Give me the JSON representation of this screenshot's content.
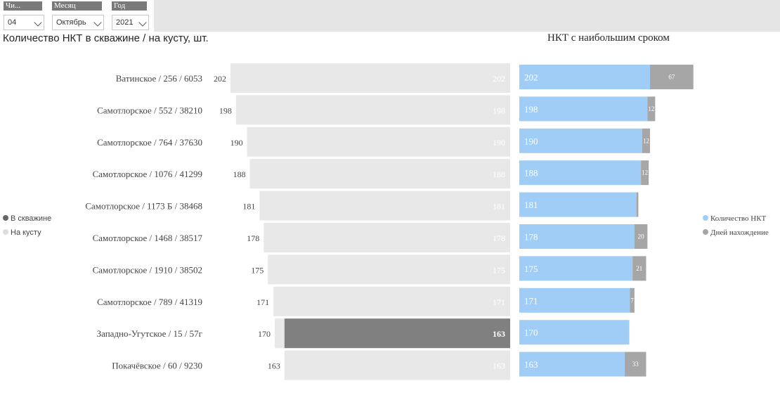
{
  "slicers": [
    {
      "title": "Чи...",
      "value": "04"
    },
    {
      "title": "Месяц",
      "value": "Октябрь"
    },
    {
      "title": "Год",
      "value": "2021"
    }
  ],
  "left_chart": {
    "title": "Количество НКТ в скважине / на кусту, шт.",
    "legend": [
      {
        "label": "В скважине",
        "color": "#666666"
      },
      {
        "label": "На кусту",
        "color": "#dddddd"
      }
    ]
  },
  "right_chart": {
    "title": "НКТ с наибольшим сроком",
    "legend": [
      {
        "label": "Количество НКТ",
        "color": "#9fcdf6"
      },
      {
        "label": "Дней нахождение",
        "color": "#a6a6a6"
      }
    ]
  },
  "chart_data": [
    {
      "type": "bar",
      "orientation": "horizontal",
      "title": "Количество НКТ в скважине / на кусту, шт.",
      "categories": [
        "Ватинское / 256 / 6053",
        "Самотлорское / 552 / 38210",
        "Самотлорское / 764 / 37630",
        "Самотлорское / 1076 / 41299",
        "Самотлорское / 1173 Б / 38468",
        "Самотлорское / 1468 / 38517",
        "Самотлорское / 1910 / 38502",
        "Самотлорское / 789 / 41319",
        "Западно-Угутское / 15 / 57г",
        "Покачёвское / 60 / 9230"
      ],
      "series": [
        {
          "name": "На кусту",
          "values": [
            202,
            198,
            190,
            188,
            181,
            178,
            175,
            171,
            170,
            163
          ],
          "color": "#e8e8e8"
        },
        {
          "name": "В скважине",
          "values": [
            0,
            0,
            0,
            0,
            0,
            0,
            0,
            0,
            163,
            0
          ],
          "color": "#808080"
        }
      ],
      "xlim": [
        0,
        202
      ],
      "legend_position": "left"
    },
    {
      "type": "bar",
      "orientation": "horizontal",
      "stacked": true,
      "title": "НКТ с наибольшим сроком",
      "categories": [
        "Ватинское / 256 / 6053",
        "Самотлорское / 552 / 38210",
        "Самотлорское / 764 / 37630",
        "Самотлорское / 1076 / 41299",
        "Самотлорское / 1173 Б / 38468",
        "Самотлорское / 1468 / 38517",
        "Самотлорское / 1910 / 38502",
        "Самотлорское / 789 / 41319",
        "Западно-Угутское / 15 / 57г",
        "Покачёвское / 60 / 9230"
      ],
      "series": [
        {
          "name": "Количество НКТ",
          "values": [
            202,
            198,
            190,
            188,
            181,
            178,
            175,
            171,
            170,
            163
          ],
          "color": "#9fcdf6"
        },
        {
          "name": "Дней нахождение",
          "values": [
            67,
            12,
            12,
            12,
            3,
            20,
            21,
            7,
            0,
            33
          ],
          "labels": [
            "67",
            "12",
            "12",
            "12",
            "",
            "20",
            "21",
            "7",
            "",
            "33"
          ],
          "color": "#a6a6a6"
        }
      ],
      "legend_position": "right"
    }
  ]
}
